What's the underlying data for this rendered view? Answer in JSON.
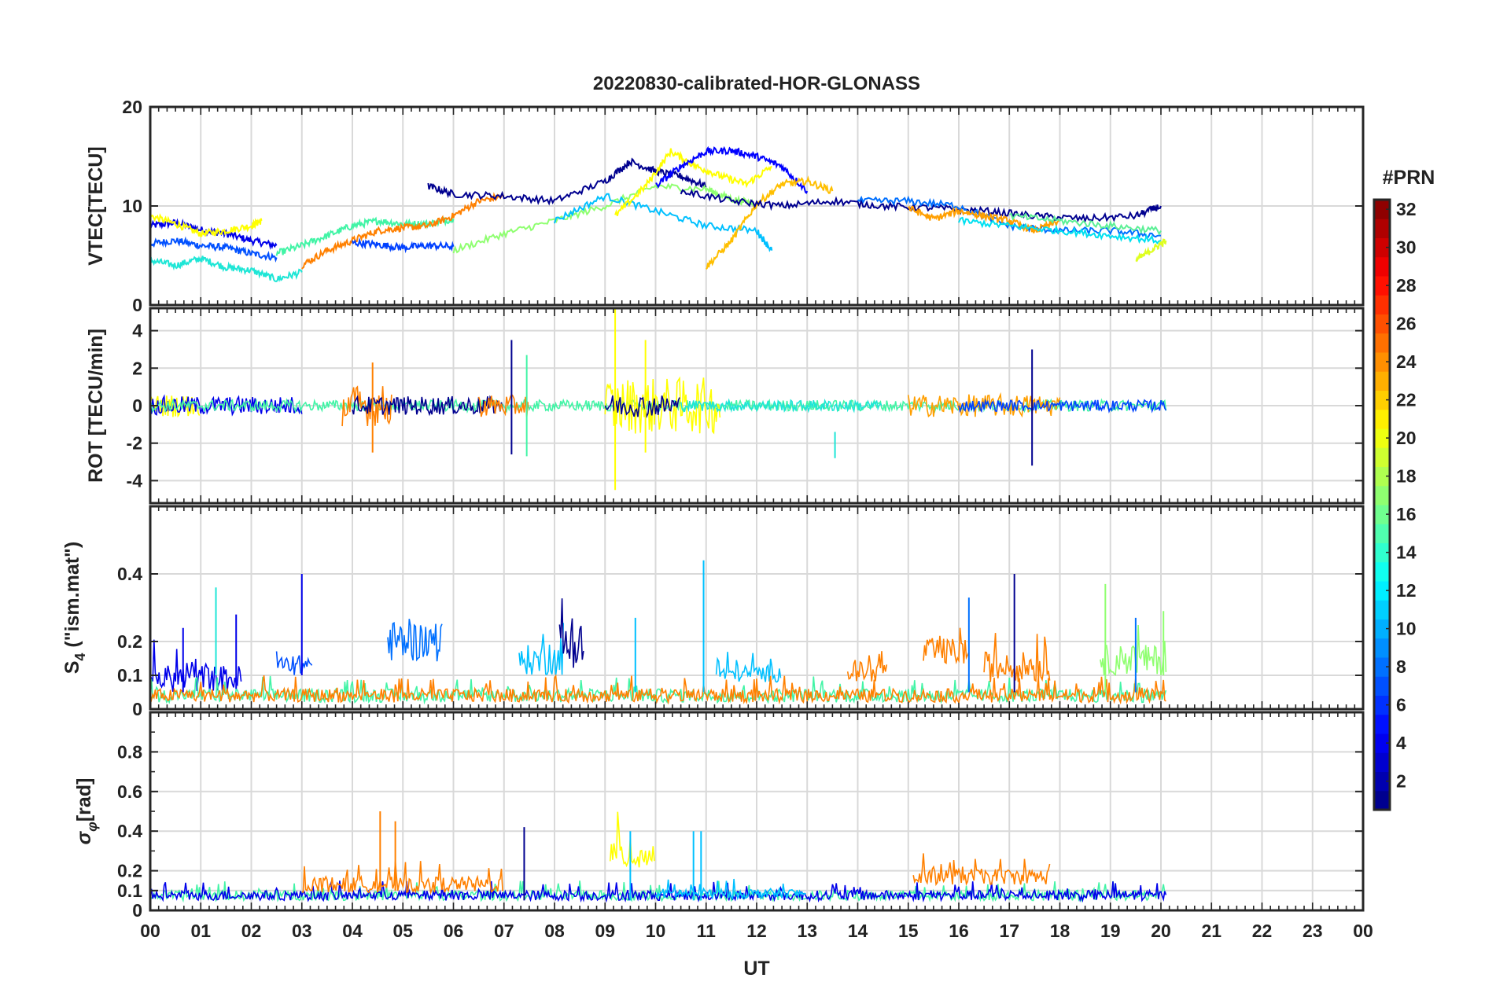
{
  "figure": {
    "title": "20220830-calibrated-HOR-GLONASS",
    "xlabel": "UT",
    "x_ticks": [
      "00",
      "01",
      "02",
      "03",
      "04",
      "05",
      "06",
      "07",
      "08",
      "09",
      "10",
      "11",
      "12",
      "13",
      "14",
      "15",
      "16",
      "17",
      "18",
      "19",
      "20",
      "21",
      "22",
      "23",
      "00"
    ]
  },
  "colorbar": {
    "label": "#PRN",
    "range": [
      1,
      32
    ],
    "ticks": [
      2,
      4,
      6,
      8,
      10,
      12,
      14,
      16,
      18,
      20,
      22,
      24,
      26,
      28,
      30,
      32
    ],
    "colormap": "jet",
    "levels": 32
  },
  "chart_data": [
    {
      "type": "line",
      "panel": "vtec",
      "ylabel": "VTEC[TECU]",
      "xlim": [
        0,
        24
      ],
      "ylim": [
        0,
        20
      ],
      "yticks": [
        0,
        10,
        20
      ],
      "grid": true,
      "series": [
        {
          "prn": 3,
          "color": "#0000ea",
          "x": [
            0,
            0.5,
            1,
            1.5,
            2,
            2.5
          ],
          "y": [
            8,
            8.3,
            7.6,
            7.2,
            6.5,
            6
          ]
        },
        {
          "prn": 5,
          "color": "#0050ff",
          "x": [
            0,
            0.5,
            1,
            1.5,
            2,
            2.5
          ],
          "y": [
            6.2,
            6.5,
            6,
            5.8,
            5.2,
            4.8
          ]
        },
        {
          "prn": 20,
          "color": "#ffff00",
          "x": [
            0,
            0.5,
            1,
            1.5,
            2,
            2.2
          ],
          "y": [
            9,
            8.2,
            7.2,
            7.5,
            8,
            8.5
          ]
        },
        {
          "prn": 13,
          "color": "#1ee6d6",
          "x": [
            0,
            0.5,
            1,
            1.5,
            2,
            2.5,
            3
          ],
          "y": [
            4.5,
            4,
            4.7,
            3.8,
            3.5,
            2.6,
            3.3
          ]
        },
        {
          "prn": 15,
          "color": "#42f4a6",
          "x": [
            2.5,
            3,
            3.5,
            4,
            4.5,
            5,
            5.5,
            6
          ],
          "y": [
            5.2,
            6,
            7,
            8,
            8.5,
            8.2,
            8.2,
            8.7
          ]
        },
        {
          "prn": 24,
          "color": "#ff8000",
          "x": [
            3,
            3.5,
            4,
            4.5,
            5,
            5.5,
            6,
            6.5,
            7
          ],
          "y": [
            4,
            5.5,
            6.5,
            7.5,
            7.8,
            8,
            9,
            10.5,
            11
          ]
        },
        {
          "prn": 7,
          "color": "#0040ff",
          "x": [
            4,
            4.5,
            5,
            5.5,
            6
          ],
          "y": [
            6.3,
            6.1,
            5.8,
            6,
            5.9
          ]
        },
        {
          "prn": 2,
          "color": "#00008f",
          "x": [
            5.5,
            6,
            7,
            8,
            9,
            9.5,
            10,
            10.5,
            11
          ],
          "y": [
            12,
            11.2,
            11,
            10.5,
            12.5,
            14.5,
            13.5,
            13,
            12
          ]
        },
        {
          "prn": 17,
          "color": "#8fff70",
          "x": [
            6,
            7,
            8,
            9,
            10,
            11,
            11.5,
            12
          ],
          "y": [
            5.5,
            7.2,
            8.5,
            10,
            12,
            11.7,
            10.7,
            10.2
          ]
        },
        {
          "prn": 11,
          "color": "#00c0ff",
          "x": [
            8,
            9,
            10,
            11,
            12,
            12.3
          ],
          "y": [
            8.5,
            11,
            9.5,
            8,
            7.5,
            5.5
          ]
        },
        {
          "prn": 20,
          "color": "#ffff00",
          "x": [
            9.2,
            9.8,
            10.3,
            10.8,
            11.3,
            11.8,
            12.3
          ],
          "y": [
            9,
            12,
            15.5,
            14,
            13,
            12.2,
            14
          ]
        },
        {
          "prn": 4,
          "color": "#0000ff",
          "x": [
            10,
            10.5,
            11,
            11.5,
            12,
            12.5,
            13
          ],
          "y": [
            12,
            14,
            15.5,
            15.6,
            15,
            14,
            11.5
          ]
        },
        {
          "prn": 22,
          "color": "#ffbf00",
          "x": [
            11,
            11.5,
            12,
            12.5,
            13,
            13.5
          ],
          "y": [
            3.8,
            6.5,
            10.2,
            12.2,
            12.5,
            11.5
          ]
        },
        {
          "prn": 1,
          "color": "#00008f",
          "x": [
            10.5,
            11.5,
            12.5,
            13.5,
            14.5,
            15.5,
            16.5,
            17.5,
            18.5,
            19.5,
            20
          ],
          "y": [
            11.5,
            10.5,
            10,
            10.5,
            10,
            9.8,
            9.5,
            9,
            8.7,
            9,
            10
          ]
        },
        {
          "prn": 9,
          "color": "#0070ff",
          "x": [
            14,
            15,
            16,
            17,
            18,
            19,
            20
          ],
          "y": [
            10.5,
            10.5,
            10,
            8,
            7.5,
            7.5,
            7
          ]
        },
        {
          "prn": 23,
          "color": "#ff9f00",
          "x": [
            15,
            15.5,
            16,
            16.5,
            17,
            17.5,
            18
          ],
          "y": [
            9.8,
            8.7,
            9.5,
            9,
            8.5,
            7.5,
            8.5
          ]
        },
        {
          "prn": 12,
          "color": "#00e0f0",
          "x": [
            16,
            17,
            18,
            19,
            20
          ],
          "y": [
            8.5,
            8,
            7.5,
            7,
            6.5
          ]
        },
        {
          "prn": 16,
          "color": "#5cf096",
          "x": [
            17,
            18,
            19,
            20
          ],
          "y": [
            9,
            8.5,
            8,
            7.5
          ]
        },
        {
          "prn": 19,
          "color": "#dfff20",
          "x": [
            19.5,
            19.8,
            20.1
          ],
          "y": [
            4.5,
            5.5,
            6.5
          ]
        }
      ]
    },
    {
      "type": "line",
      "panel": "rot",
      "ylabel": "ROT [TECU/min]",
      "xlim": [
        0,
        24
      ],
      "ylim": [
        -5.2,
        5.2
      ],
      "yticks": [
        -4,
        -2,
        0,
        2,
        4
      ],
      "grid": true,
      "noise": [
        {
          "prn": 20,
          "color": "#ffff00",
          "t0": 0,
          "t1": 1,
          "amp": 0.6
        },
        {
          "prn": 3,
          "color": "#0000ea",
          "t0": 0,
          "t1": 3,
          "amp": 0.5
        },
        {
          "prn": 15,
          "color": "#42f4a6",
          "t0": 0,
          "t1": 20.1,
          "amp": 0.3
        },
        {
          "prn": 24,
          "color": "#ff8000",
          "t0": 3.8,
          "t1": 4.8,
          "amp": 1.1
        },
        {
          "prn": 1,
          "color": "#00008f",
          "t0": 4,
          "t1": 7,
          "amp": 0.5
        },
        {
          "prn": 24,
          "color": "#ff8000",
          "t0": 6.5,
          "t1": 7.5,
          "amp": 0.6
        },
        {
          "prn": 20,
          "color": "#ffff00",
          "t0": 9,
          "t1": 11.3,
          "amp": 1.5
        },
        {
          "prn": 2,
          "color": "#00008f",
          "t0": 9,
          "t1": 10.5,
          "amp": 0.6
        },
        {
          "prn": 13,
          "color": "#1ee6d6",
          "t0": 10.5,
          "t1": 14.5,
          "amp": 0.3
        },
        {
          "prn": 23,
          "color": "#ff9f00",
          "t0": 15,
          "t1": 18,
          "amp": 0.6
        },
        {
          "prn": 6,
          "color": "#0040ff",
          "t0": 16,
          "t1": 20.1,
          "amp": 0.3
        }
      ],
      "spikes": [
        {
          "color": "#00008f",
          "t": 7.15,
          "top": 3.5,
          "bottom": -2.6
        },
        {
          "color": "#42f4a6",
          "t": 7.45,
          "top": 2.7,
          "bottom": -2.7
        },
        {
          "color": "#ffff00",
          "t": 9.2,
          "top": 5.2,
          "bottom": -4.5
        },
        {
          "color": "#ffff00",
          "t": 9.8,
          "top": 3.5,
          "bottom": -2.5
        },
        {
          "color": "#ff8000",
          "t": 4.4,
          "top": 2.3,
          "bottom": -2.5
        },
        {
          "color": "#00008f",
          "t": 17.45,
          "top": 3,
          "bottom": -3.2
        },
        {
          "color": "#1ee6d6",
          "t": 13.55,
          "top": -1.4,
          "bottom": -2.8
        }
      ]
    },
    {
      "type": "line",
      "panel": "s4",
      "ylabel": "S_4 (\"ism.mat\")",
      "xlim": [
        0,
        24
      ],
      "ylim": [
        0,
        0.6
      ],
      "yticks": [
        0,
        0.1,
        0.2,
        0.4
      ],
      "grid": true,
      "noise": [
        {
          "prn": 3,
          "color": "#0000ea",
          "t0": 0,
          "t1": 1.8,
          "base": 0.05,
          "amp": 0.08
        },
        {
          "prn": 5,
          "color": "#0050ff",
          "t0": 2.5,
          "t1": 3.2,
          "base": 0.1,
          "amp": 0.06
        },
        {
          "prn": 8,
          "color": "#0070ff",
          "t0": 4.7,
          "t1": 5.8,
          "base": 0.14,
          "amp": 0.12
        },
        {
          "prn": 11,
          "color": "#00c0ff",
          "t0": 7.3,
          "t1": 8.2,
          "base": 0.1,
          "amp": 0.09
        },
        {
          "prn": 2,
          "color": "#00008f",
          "t0": 8.1,
          "t1": 8.6,
          "base": 0.12,
          "amp": 0.14
        },
        {
          "prn": 11,
          "color": "#00c0ff",
          "t0": 11.2,
          "t1": 12.5,
          "base": 0.08,
          "amp": 0.05
        },
        {
          "prn": 24,
          "color": "#ff8000",
          "t0": 13.8,
          "t1": 14.6,
          "base": 0.08,
          "amp": 0.06
        },
        {
          "prn": 24,
          "color": "#ff8000",
          "t0": 15.3,
          "t1": 16.2,
          "base": 0.13,
          "amp": 0.08
        },
        {
          "prn": 24,
          "color": "#ff8000",
          "t0": 16.5,
          "t1": 17.8,
          "base": 0.08,
          "amp": 0.09
        },
        {
          "prn": 17,
          "color": "#8fff70",
          "t0": 18.8,
          "t1": 20.1,
          "base": 0.1,
          "amp": 0.09
        },
        {
          "prn": 15,
          "color": "#42f4a6",
          "t0": 0,
          "t1": 20.1,
          "base": 0.02,
          "amp": 0.04
        },
        {
          "prn": 24,
          "color": "#ff8000",
          "t0": 0,
          "t1": 20.1,
          "base": 0.02,
          "amp": 0.04
        }
      ],
      "spikes": [
        {
          "color": "#1ee6d6",
          "t": 1.3,
          "top": 0.36,
          "bottom": 0.1
        },
        {
          "color": "#0000ea",
          "t": 1.7,
          "top": 0.28,
          "bottom": 0.06
        },
        {
          "color": "#0000ea",
          "t": 0.65,
          "top": 0.24,
          "bottom": 0.05
        },
        {
          "color": "#0000ea",
          "t": 3.0,
          "top": 0.4,
          "bottom": 0.1
        },
        {
          "color": "#00c0ff",
          "t": 9.6,
          "top": 0.27,
          "bottom": 0.05
        },
        {
          "color": "#00c0ff",
          "t": 10.95,
          "top": 0.44,
          "bottom": 0.05
        },
        {
          "color": "#00008f",
          "t": 17.1,
          "top": 0.4,
          "bottom": 0.05
        },
        {
          "color": "#0070ff",
          "t": 16.2,
          "top": 0.33,
          "bottom": 0.05
        },
        {
          "color": "#0070ff",
          "t": 19.5,
          "top": 0.27,
          "bottom": 0.05
        },
        {
          "color": "#8fff70",
          "t": 18.9,
          "top": 0.37,
          "bottom": 0.05
        },
        {
          "color": "#8fff70",
          "t": 20.05,
          "top": 0.29,
          "bottom": 0.1
        }
      ]
    },
    {
      "type": "line",
      "panel": "sigma_phi",
      "ylabel": "σ_φ[rad]",
      "xlim": [
        0,
        24
      ],
      "ylim": [
        0,
        1
      ],
      "yticks": [
        0,
        0.1,
        0.2,
        0.4,
        0.6,
        0.8
      ],
      "grid": true,
      "noise": [
        {
          "prn": 15,
          "color": "#42f4a6",
          "t0": 0,
          "t1": 20.1,
          "base": 0.05,
          "amp": 0.05
        },
        {
          "prn": 3,
          "color": "#0000ea",
          "t0": 0,
          "t1": 20.1,
          "base": 0.05,
          "amp": 0.05
        },
        {
          "prn": 24,
          "color": "#ff8000",
          "t0": 3,
          "t1": 7,
          "base": 0.09,
          "amp": 0.08
        },
        {
          "prn": 20,
          "color": "#ffff00",
          "t0": 9.1,
          "t1": 10,
          "base": 0.2,
          "amp": 0.15
        },
        {
          "prn": 24,
          "color": "#ff8000",
          "t0": 15.1,
          "t1": 17.8,
          "base": 0.13,
          "amp": 0.08
        },
        {
          "prn": 11,
          "color": "#00c0ff",
          "t0": 10,
          "t1": 13,
          "base": 0.06,
          "amp": 0.05
        }
      ],
      "spikes": [
        {
          "color": "#ff8000",
          "t": 4.55,
          "top": 0.5,
          "bottom": 0.1
        },
        {
          "color": "#ff8000",
          "t": 4.85,
          "top": 0.45,
          "bottom": 0.1
        },
        {
          "color": "#00008f",
          "t": 7.4,
          "top": 0.42,
          "bottom": 0.05
        },
        {
          "color": "#00c0ff",
          "t": 9.5,
          "top": 0.4,
          "bottom": 0.05
        },
        {
          "color": "#00c0ff",
          "t": 10.75,
          "top": 0.4,
          "bottom": 0.05
        },
        {
          "color": "#00c0ff",
          "t": 10.9,
          "top": 0.4,
          "bottom": 0.05
        }
      ]
    }
  ]
}
